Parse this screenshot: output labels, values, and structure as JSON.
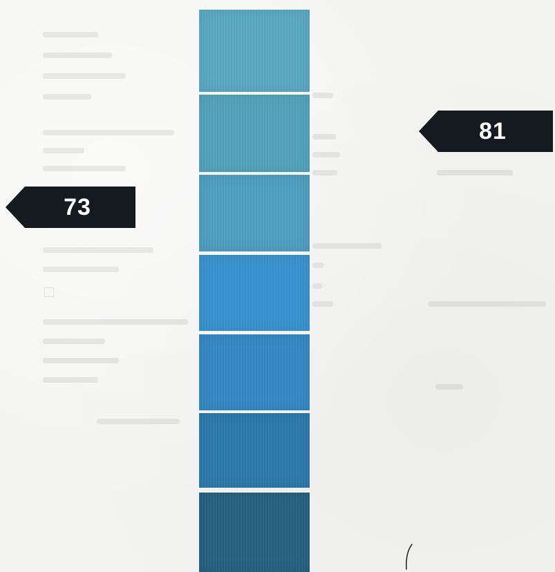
{
  "markers": {
    "right": {
      "value": "81"
    },
    "left": {
      "value": "73"
    }
  },
  "swatches": [
    {
      "color": "#5aa9c3"
    },
    {
      "color": "#52a3be"
    },
    {
      "color": "#4e9fc2"
    },
    {
      "color": "#3893d0"
    },
    {
      "color": "#3588c4"
    },
    {
      "color": "#2b7aac"
    },
    {
      "color": "#24627f"
    }
  ],
  "colors": {
    "tag_background": "#151a20",
    "tag_text": "#ffffff",
    "paper": "#f3f3f1"
  }
}
